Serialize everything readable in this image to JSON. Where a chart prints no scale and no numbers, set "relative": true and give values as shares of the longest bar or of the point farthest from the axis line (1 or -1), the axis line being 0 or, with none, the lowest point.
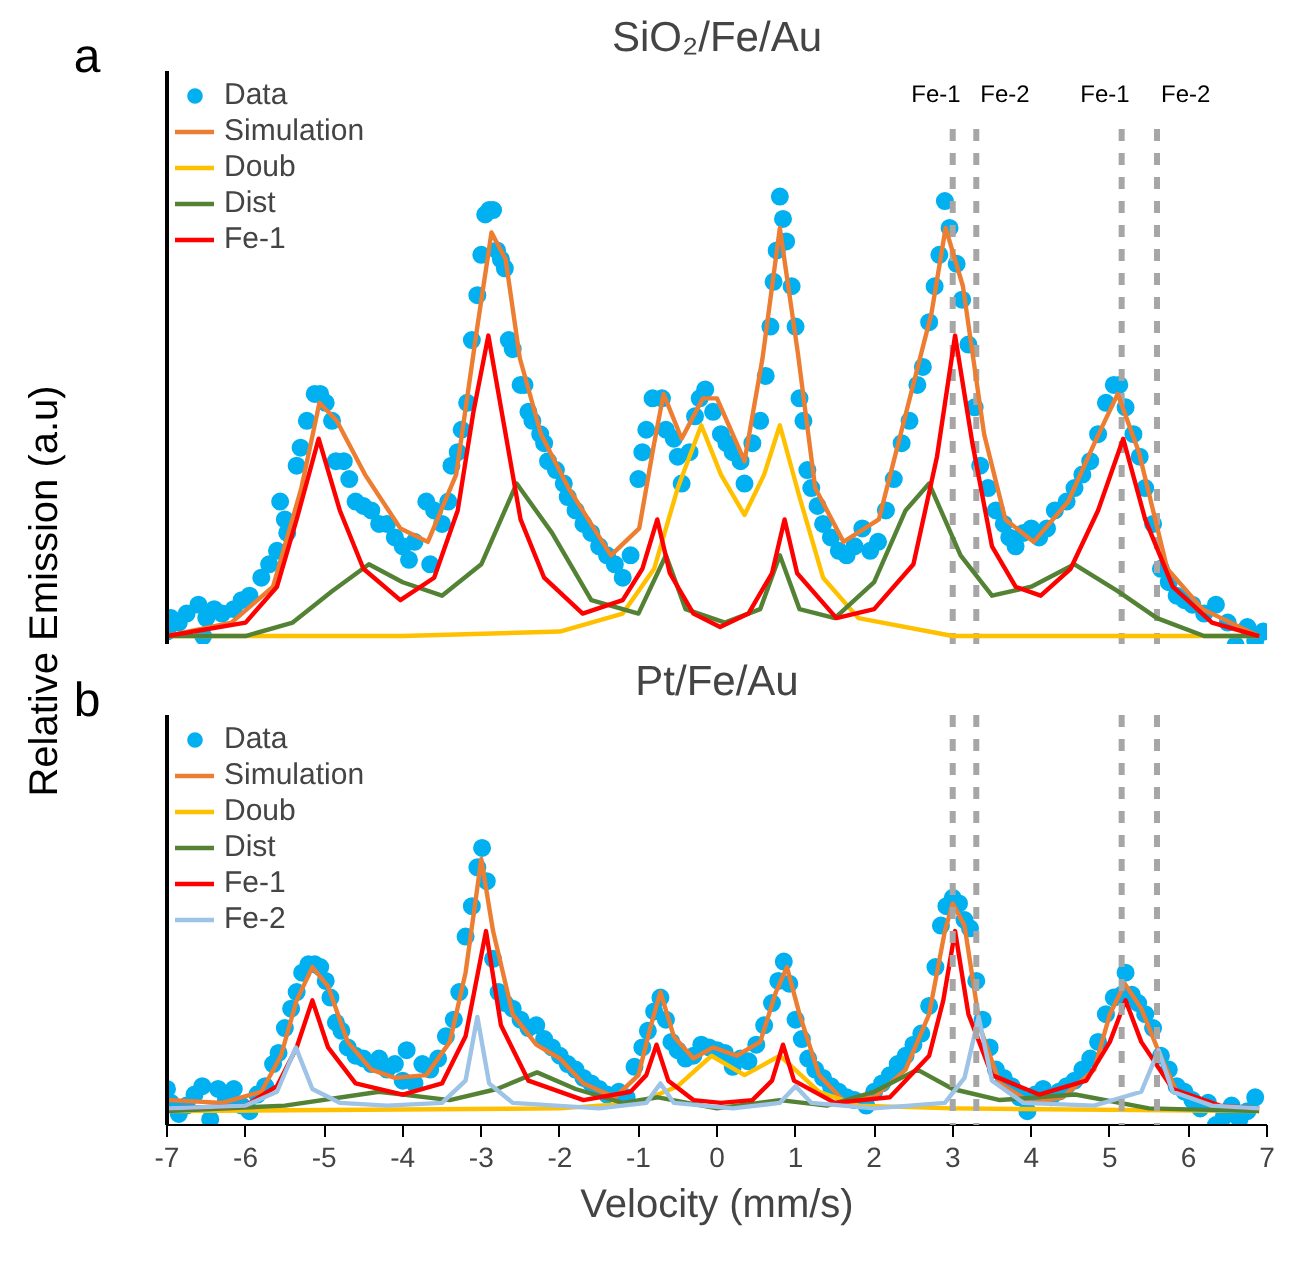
{
  "chart_data": [
    {
      "type": "line",
      "title": "SiO₂/Fe/Au",
      "ylabel": "Relative Emission (a.u)",
      "annotations": [
        "a"
      ],
      "relative": true,
      "xlim": [
        -7,
        7
      ],
      "tick_labels": false,
      "legend": "top left",
      "ref_lines": [
        {
          "axis": "x",
          "value": 3.0,
          "label": "Fe-1",
          "color": "#a6a6a6",
          "line_style": "dashed"
        },
        {
          "axis": "x",
          "value": 3.3,
          "label": "Fe-2",
          "color": "#a6a6a6",
          "line_style": "dashed"
        },
        {
          "axis": "x",
          "value": 5.15,
          "label": "Fe-1",
          "color": "#a6a6a6",
          "line_style": "dashed"
        },
        {
          "axis": "x",
          "value": 5.6,
          "label": "Fe-2",
          "color": "#a6a6a6",
          "line_style": "dashed"
        }
      ],
      "series": [
        {
          "name": "Data",
          "type": "scatter",
          "marker": "circle",
          "color": "#00b0f0",
          "x": [
            -7.0,
            -6.95,
            -6.85,
            -6.75,
            -6.6,
            -6.54,
            -6.5,
            -6.4,
            -6.3,
            -6.15,
            -6.05,
            -5.95,
            -5.8,
            -5.7,
            -5.6,
            -5.56,
            -5.5,
            -5.47,
            -5.35,
            -5.3,
            -5.22,
            -5.12,
            -5.05,
            -4.98,
            -4.9,
            -4.85,
            -4.75,
            -4.68,
            -4.6,
            -4.5,
            -4.4,
            -4.3,
            -4.2,
            -4.1,
            -4.0,
            -3.92,
            -3.85,
            -3.7,
            -3.65,
            -3.6,
            -3.5,
            -3.42,
            -3.38,
            -3.3,
            -3.25,
            -3.18,
            -3.12,
            -3.05,
            -3.0,
            -2.95,
            -2.9,
            -2.85,
            -2.8,
            -2.75,
            -2.7,
            -2.65,
            -2.6,
            -2.5,
            -2.45,
            -2.4,
            -2.35,
            -2.25,
            -2.2,
            -2.15,
            -2.05,
            -1.95,
            -1.9,
            -1.8,
            -1.7,
            -1.6,
            -1.5,
            -1.4,
            -1.3,
            -1.2,
            -1.1,
            -1.0,
            -0.95,
            -0.9,
            -0.82,
            -0.7,
            -0.65,
            -0.55,
            -0.5,
            -0.45,
            -0.35,
            -0.28,
            -0.22,
            -0.15,
            -0.05,
            0.05,
            0.12,
            0.2,
            0.3,
            0.35,
            0.45,
            0.55,
            0.62,
            0.68,
            0.72,
            0.76,
            0.8,
            0.84,
            0.88,
            0.95,
            1.0,
            1.05,
            1.1,
            1.15,
            1.2,
            1.28,
            1.35,
            1.45,
            1.55,
            1.65,
            1.75,
            1.85,
            1.95,
            2.05,
            2.15,
            2.25,
            2.35,
            2.45,
            2.55,
            2.62,
            2.7,
            2.77,
            2.83,
            2.9,
            2.96,
            3.05,
            3.12,
            3.2,
            3.28,
            3.35,
            3.45,
            3.55,
            3.65,
            3.72,
            3.8,
            3.9,
            4.0,
            4.1,
            4.2,
            4.3,
            4.45,
            4.55,
            4.65,
            4.75,
            4.85,
            4.95,
            5.05,
            5.12,
            5.2,
            5.3,
            5.38,
            5.45,
            5.55,
            5.65,
            5.75,
            5.85,
            5.95,
            6.05,
            6.2,
            6.35,
            6.5,
            6.6,
            6.75,
            6.85,
            6.95
          ],
          "values": [
            0.03,
            0.06,
            0.05,
            0.07,
            0.09,
            0.02,
            0.06,
            0.08,
            0.07,
            0.08,
            0.1,
            0.11,
            0.15,
            0.18,
            0.21,
            0.32,
            0.28,
            0.25,
            0.4,
            0.44,
            0.5,
            0.56,
            0.56,
            0.54,
            0.5,
            0.41,
            0.41,
            0.37,
            0.32,
            0.31,
            0.3,
            0.27,
            0.27,
            0.24,
            0.22,
            0.19,
            0.23,
            0.32,
            0.18,
            0.3,
            0.27,
            0.32,
            0.4,
            0.43,
            0.48,
            0.54,
            0.68,
            0.78,
            0.87,
            0.96,
            0.97,
            0.97,
            0.88,
            0.86,
            0.84,
            0.68,
            0.66,
            0.58,
            0.58,
            0.52,
            0.5,
            0.47,
            0.45,
            0.41,
            0.39,
            0.36,
            0.33,
            0.3,
            0.27,
            0.25,
            0.22,
            0.2,
            0.18,
            0.15,
            0.2,
            0.37,
            0.43,
            0.48,
            0.55,
            0.55,
            0.48,
            0.46,
            0.42,
            0.36,
            0.43,
            0.51,
            0.55,
            0.57,
            0.52,
            0.47,
            0.45,
            0.43,
            0.41,
            0.36,
            0.45,
            0.5,
            0.6,
            0.71,
            0.81,
            0.88,
            1.0,
            0.95,
            0.9,
            0.8,
            0.71,
            0.55,
            0.5,
            0.39,
            0.35,
            0.31,
            0.27,
            0.24,
            0.21,
            0.2,
            0.22,
            0.26,
            0.21,
            0.23,
            0.3,
            0.37,
            0.45,
            0.5,
            0.58,
            0.62,
            0.72,
            0.8,
            0.87,
            0.99,
            0.93,
            0.85,
            0.77,
            0.67,
            0.53,
            0.4,
            0.35,
            0.3,
            0.27,
            0.24,
            0.22,
            0.25,
            0.26,
            0.24,
            0.26,
            0.3,
            0.32,
            0.35,
            0.38,
            0.41,
            0.47,
            0.54,
            0.58,
            0.58,
            0.53,
            0.47,
            0.42,
            0.35,
            0.27,
            0.17,
            0.14,
            0.11,
            0.1,
            0.09,
            0.07,
            0.09,
            0.05,
            0.0,
            0.04,
            0.01,
            0.03
          ]
        },
        {
          "name": "Simulation",
          "color": "#ed7d31",
          "x": [
            -7.0,
            -6.18,
            -5.65,
            -5.29,
            -5.06,
            -4.84,
            -4.48,
            -4.03,
            -3.68,
            -3.32,
            -3.05,
            -2.87,
            -2.69,
            -2.51,
            -2.24,
            -1.89,
            -1.35,
            -0.99,
            -0.81,
            -0.68,
            -0.45,
            -0.18,
            0.0,
            0.35,
            0.58,
            0.8,
            1.03,
            1.25,
            1.61,
            2.06,
            2.41,
            2.73,
            2.91,
            3.13,
            3.4,
            3.67,
            4.03,
            4.47,
            4.83,
            5.1,
            5.37,
            5.73,
            6.18,
            6.89
          ],
          "values": [
            0.02,
            0.05,
            0.13,
            0.35,
            0.54,
            0.5,
            0.38,
            0.26,
            0.23,
            0.38,
            0.71,
            0.92,
            0.86,
            0.64,
            0.47,
            0.35,
            0.2,
            0.26,
            0.44,
            0.56,
            0.46,
            0.55,
            0.55,
            0.41,
            0.64,
            0.93,
            0.65,
            0.35,
            0.23,
            0.28,
            0.52,
            0.74,
            0.93,
            0.8,
            0.47,
            0.28,
            0.23,
            0.32,
            0.46,
            0.56,
            0.43,
            0.17,
            0.08,
            0.02
          ]
        },
        {
          "name": "Doub",
          "color": "#ffc000",
          "x": [
            -7.0,
            -4.0,
            -2.0,
            -1.2,
            -0.8,
            -0.5,
            -0.2,
            0.05,
            0.35,
            0.6,
            0.8,
            1.05,
            1.35,
            1.8,
            3.0,
            6.9
          ],
          "values": [
            0.02,
            0.02,
            0.03,
            0.07,
            0.17,
            0.35,
            0.49,
            0.38,
            0.29,
            0.38,
            0.49,
            0.33,
            0.15,
            0.06,
            0.02,
            0.02
          ]
        },
        {
          "name": "Dist",
          "color": "#548235",
          "x": [
            -7.0,
            -6.0,
            -5.4,
            -4.9,
            -4.43,
            -4.0,
            -3.5,
            -3.0,
            -2.55,
            -2.1,
            -1.6,
            -1.0,
            -0.65,
            -0.4,
            0.1,
            0.55,
            0.8,
            1.05,
            1.5,
            2.0,
            2.4,
            2.7,
            3.1,
            3.5,
            4.0,
            4.55,
            5.1,
            5.6,
            6.2,
            6.9
          ],
          "values": [
            0.02,
            0.02,
            0.05,
            0.12,
            0.18,
            0.14,
            0.11,
            0.18,
            0.36,
            0.25,
            0.1,
            0.07,
            0.2,
            0.08,
            0.05,
            0.08,
            0.2,
            0.08,
            0.06,
            0.14,
            0.3,
            0.36,
            0.2,
            0.11,
            0.13,
            0.18,
            0.12,
            0.06,
            0.02,
            0.02
          ]
        },
        {
          "name": "Fe-1",
          "color": "#ff0000",
          "x": [
            -7.0,
            -6.0,
            -5.6,
            -5.35,
            -5.07,
            -4.8,
            -4.5,
            -4.03,
            -3.6,
            -3.3,
            -3.1,
            -2.91,
            -2.72,
            -2.5,
            -2.2,
            -1.71,
            -1.2,
            -0.95,
            -0.76,
            -0.6,
            -0.3,
            0.04,
            0.4,
            0.7,
            0.86,
            1.02,
            1.52,
            2.0,
            2.5,
            2.8,
            3.03,
            3.25,
            3.5,
            3.8,
            4.12,
            4.5,
            4.85,
            5.17,
            5.45,
            5.8,
            6.3,
            6.9
          ],
          "values": [
            0.02,
            0.05,
            0.13,
            0.28,
            0.46,
            0.3,
            0.17,
            0.1,
            0.15,
            0.3,
            0.52,
            0.69,
            0.5,
            0.28,
            0.15,
            0.07,
            0.1,
            0.17,
            0.28,
            0.16,
            0.07,
            0.04,
            0.07,
            0.16,
            0.28,
            0.16,
            0.06,
            0.08,
            0.18,
            0.42,
            0.69,
            0.45,
            0.22,
            0.13,
            0.11,
            0.17,
            0.3,
            0.46,
            0.28,
            0.13,
            0.05,
            0.02
          ]
        }
      ]
    },
    {
      "type": "line",
      "title": "Pt/Fe/Au",
      "xlabel": "Velocity (mm/s)",
      "annotations": [
        "b"
      ],
      "relative": true,
      "xlim": [
        -7,
        7
      ],
      "xticks": [
        -7,
        -6,
        -5,
        -4,
        -3,
        -2,
        -1,
        0,
        1,
        2,
        3,
        4,
        5,
        6,
        7
      ],
      "tick_labels": "x",
      "legend": "top left",
      "ref_lines": [
        {
          "axis": "x",
          "value": 3.0,
          "color": "#a6a6a6",
          "line_style": "dashed"
        },
        {
          "axis": "x",
          "value": 3.3,
          "color": "#a6a6a6",
          "line_style": "dashed"
        },
        {
          "axis": "x",
          "value": 5.15,
          "color": "#a6a6a6",
          "line_style": "dashed"
        },
        {
          "axis": "x",
          "value": 5.6,
          "color": "#a6a6a6",
          "line_style": "dashed"
        }
      ],
      "series": [
        {
          "name": "Data",
          "type": "scatter",
          "marker": "circle",
          "color": "#00b0f0",
          "x": [
            -7.0,
            -6.95,
            -6.85,
            -6.75,
            -6.65,
            -6.55,
            -6.45,
            -6.35,
            -6.25,
            -6.15,
            -6.05,
            -5.95,
            -5.85,
            -5.75,
            -5.65,
            -5.58,
            -5.5,
            -5.42,
            -5.35,
            -5.28,
            -5.2,
            -5.12,
            -5.05,
            -4.98,
            -4.92,
            -4.85,
            -4.78,
            -4.7,
            -4.6,
            -4.5,
            -4.4,
            -4.3,
            -4.2,
            -4.1,
            -4.0,
            -3.95,
            -3.85,
            -3.75,
            -3.65,
            -3.55,
            -3.45,
            -3.35,
            -3.28,
            -3.2,
            -3.12,
            -3.05,
            -2.99,
            -2.93,
            -2.85,
            -2.78,
            -2.7,
            -2.6,
            -2.5,
            -2.4,
            -2.3,
            -2.2,
            -2.1,
            -2.0,
            -1.9,
            -1.8,
            -1.7,
            -1.6,
            -1.5,
            -1.4,
            -1.25,
            -1.15,
            -1.05,
            -0.95,
            -0.88,
            -0.8,
            -0.72,
            -0.65,
            -0.58,
            -0.5,
            -0.4,
            -0.3,
            -0.2,
            -0.1,
            0.0,
            0.1,
            0.2,
            0.3,
            0.4,
            0.5,
            0.6,
            0.7,
            0.78,
            0.85,
            0.92,
            1.0,
            1.08,
            1.16,
            1.25,
            1.35,
            1.45,
            1.55,
            1.65,
            1.75,
            1.9,
            2.0,
            2.1,
            2.2,
            2.3,
            2.4,
            2.5,
            2.6,
            2.7,
            2.78,
            2.85,
            2.92,
            3.0,
            3.08,
            3.15,
            3.22,
            3.3,
            3.38,
            3.47,
            3.55,
            3.65,
            3.75,
            3.85,
            3.95,
            4.05,
            4.15,
            4.25,
            4.35,
            4.45,
            4.55,
            4.65,
            4.75,
            4.85,
            4.95,
            5.05,
            5.15,
            5.2,
            5.28,
            5.36,
            5.45,
            5.55,
            5.65,
            5.75,
            5.85,
            5.95,
            6.05,
            6.15,
            6.25,
            6.35,
            6.45,
            6.55,
            6.65,
            6.75,
            6.85
          ],
          "values": [
            0.13,
            0.08,
            0.04,
            0.07,
            0.11,
            0.14,
            0.02,
            0.13,
            0.09,
            0.13,
            0.07,
            0.05,
            0.11,
            0.14,
            0.22,
            0.26,
            0.35,
            0.42,
            0.48,
            0.55,
            0.58,
            0.58,
            0.57,
            0.52,
            0.46,
            0.37,
            0.34,
            0.28,
            0.25,
            0.24,
            0.22,
            0.24,
            0.2,
            0.22,
            0.16,
            0.27,
            0.15,
            0.22,
            0.2,
            0.24,
            0.32,
            0.38,
            0.48,
            0.68,
            0.79,
            0.93,
            1.0,
            0.88,
            0.6,
            0.48,
            0.44,
            0.42,
            0.38,
            0.35,
            0.36,
            0.31,
            0.28,
            0.25,
            0.22,
            0.2,
            0.17,
            0.15,
            0.13,
            0.11,
            0.12,
            0.1,
            0.21,
            0.28,
            0.34,
            0.41,
            0.46,
            0.38,
            0.3,
            0.27,
            0.24,
            0.25,
            0.29,
            0.28,
            0.27,
            0.26,
            0.21,
            0.24,
            0.23,
            0.29,
            0.36,
            0.44,
            0.52,
            0.59,
            0.51,
            0.38,
            0.31,
            0.24,
            0.2,
            0.17,
            0.14,
            0.12,
            0.1,
            0.09,
            0.07,
            0.12,
            0.15,
            0.18,
            0.22,
            0.25,
            0.29,
            0.33,
            0.43,
            0.57,
            0.72,
            0.79,
            0.82,
            0.8,
            0.74,
            0.71,
            0.52,
            0.38,
            0.28,
            0.2,
            0.17,
            0.14,
            0.1,
            0.05,
            0.11,
            0.13,
            0.1,
            0.12,
            0.14,
            0.16,
            0.2,
            0.24,
            0.3,
            0.4,
            0.46,
            0.47,
            0.55,
            0.47,
            0.44,
            0.4,
            0.35,
            0.25,
            0.2,
            0.14,
            0.12,
            0.09,
            0.06,
            0.08,
            0.0,
            0.03,
            0.07,
            0.02,
            0.05,
            0.1
          ]
        },
        {
          "name": "Simulation",
          "color": "#ed7d31",
          "x": [
            -7.0,
            -6.3,
            -5.8,
            -5.55,
            -5.35,
            -5.15,
            -4.95,
            -4.7,
            -4.4,
            -4.1,
            -3.7,
            -3.4,
            -3.2,
            -3.0,
            -2.85,
            -2.6,
            -2.3,
            -2.0,
            -1.7,
            -1.3,
            -1.0,
            -0.85,
            -0.72,
            -0.55,
            -0.3,
            -0.05,
            0.25,
            0.55,
            0.75,
            0.89,
            1.05,
            1.3,
            1.6,
            2.0,
            2.4,
            2.7,
            2.9,
            3.0,
            3.15,
            3.35,
            3.6,
            4.0,
            4.4,
            4.8,
            5.0,
            5.19,
            5.4,
            5.6,
            5.85,
            6.3,
            6.9
          ],
          "values": [
            0.09,
            0.08,
            0.12,
            0.25,
            0.45,
            0.57,
            0.5,
            0.3,
            0.2,
            0.17,
            0.18,
            0.3,
            0.55,
            0.96,
            0.7,
            0.4,
            0.29,
            0.24,
            0.15,
            0.1,
            0.18,
            0.35,
            0.48,
            0.32,
            0.24,
            0.28,
            0.25,
            0.3,
            0.48,
            0.57,
            0.4,
            0.18,
            0.09,
            0.1,
            0.2,
            0.4,
            0.7,
            0.8,
            0.72,
            0.35,
            0.15,
            0.08,
            0.1,
            0.2,
            0.4,
            0.51,
            0.42,
            0.28,
            0.12,
            0.07,
            0.06
          ]
        },
        {
          "name": "Doub",
          "color": "#ffc000",
          "x": [
            -7.0,
            -2.0,
            -1.0,
            -0.5,
            -0.07,
            0.35,
            0.8,
            1.3,
            1.8,
            3.0,
            6.9
          ],
          "values": [
            0.05,
            0.06,
            0.08,
            0.14,
            0.25,
            0.18,
            0.25,
            0.12,
            0.07,
            0.06,
            0.05
          ]
        },
        {
          "name": "Dist",
          "color": "#548235",
          "x": [
            -7.0,
            -5.5,
            -4.3,
            -3.4,
            -2.8,
            -2.29,
            -1.8,
            -1.2,
            -0.75,
            0.0,
            0.8,
            1.4,
            2.0,
            2.55,
            3.0,
            3.6,
            4.56,
            5.5,
            6.9
          ],
          "values": [
            0.05,
            0.07,
            0.12,
            0.09,
            0.13,
            0.19,
            0.13,
            0.08,
            0.1,
            0.06,
            0.09,
            0.07,
            0.12,
            0.2,
            0.13,
            0.09,
            0.11,
            0.06,
            0.05
          ]
        },
        {
          "name": "Fe-1",
          "color": "#ff0000",
          "x": [
            -7.0,
            -6.0,
            -5.6,
            -5.35,
            -5.15,
            -4.95,
            -4.6,
            -4.0,
            -3.5,
            -3.2,
            -2.94,
            -2.75,
            -2.4,
            -1.7,
            -1.1,
            -0.9,
            -0.77,
            -0.62,
            -0.3,
            0.05,
            0.45,
            0.7,
            0.84,
            0.98,
            1.5,
            2.2,
            2.7,
            2.88,
            3.03,
            3.2,
            3.5,
            4.1,
            4.7,
            5.0,
            5.2,
            5.4,
            5.8,
            6.4,
            6.9
          ],
          "values": [
            0.06,
            0.07,
            0.14,
            0.28,
            0.45,
            0.28,
            0.15,
            0.11,
            0.15,
            0.32,
            0.7,
            0.36,
            0.16,
            0.09,
            0.12,
            0.18,
            0.29,
            0.16,
            0.09,
            0.08,
            0.09,
            0.16,
            0.29,
            0.16,
            0.08,
            0.1,
            0.25,
            0.45,
            0.7,
            0.4,
            0.18,
            0.11,
            0.16,
            0.3,
            0.45,
            0.3,
            0.13,
            0.07,
            0.06
          ]
        },
        {
          "name": "Fe-2",
          "color": "#9dc3e6",
          "x": [
            -7.0,
            -6.0,
            -5.6,
            -5.36,
            -5.15,
            -4.8,
            -4.2,
            -3.5,
            -3.2,
            -3.05,
            -2.9,
            -2.6,
            -1.5,
            -0.9,
            -0.72,
            -0.55,
            0.2,
            0.8,
            1.0,
            1.2,
            2.0,
            2.9,
            3.15,
            3.33,
            3.5,
            3.9,
            4.8,
            5.4,
            5.62,
            5.8,
            6.3,
            6.9
          ],
          "values": [
            0.06,
            0.07,
            0.12,
            0.28,
            0.13,
            0.08,
            0.07,
            0.08,
            0.16,
            0.39,
            0.15,
            0.08,
            0.06,
            0.08,
            0.15,
            0.08,
            0.06,
            0.08,
            0.14,
            0.08,
            0.06,
            0.08,
            0.17,
            0.39,
            0.16,
            0.08,
            0.07,
            0.12,
            0.27,
            0.12,
            0.07,
            0.06
          ]
        }
      ]
    }
  ]
}
